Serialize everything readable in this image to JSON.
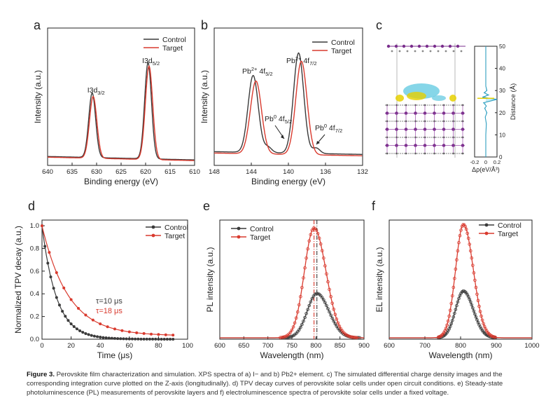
{
  "caption": {
    "label": "Figure 3.",
    "text": "Perovskite film characterization and simulation. XPS spectra of a) I− and b) Pb2+ element. c) The simulated differential charge density images and the corresponding integration curve plotted on the Z-axis (longitudinally). d) TPV decay curves of perovskite solar cells under open circuit conditions. e) Steady-state photoluminescence (PL) measurements of perovskite layers and f) electroluminescence spectra of perovskite solar cells under a fixed voltage."
  },
  "colors": {
    "control": "#3a3a3a",
    "target": "#d93a2e",
    "cyan": "#5ec8e0",
    "yellow": "#e6d000",
    "purple": "#7a2e8c"
  },
  "chart_data": [
    {
      "id": "a",
      "type": "line",
      "panel_label": "a",
      "xlabel": "Binding energy (eV)",
      "ylabel": "Intensity (a.u.)",
      "xlim": [
        640,
        610
      ],
      "xticks": [
        640,
        635,
        630,
        625,
        620,
        615,
        610
      ],
      "legend": [
        "Control",
        "Target"
      ],
      "annotations": [
        {
          "text": "I3d3/2",
          "x": 630.8
        },
        {
          "text": "I3d5/2",
          "x": 619.3
        }
      ],
      "series": [
        {
          "name": "Control",
          "peaks": [
            {
              "center": 630.9,
              "height": 0.47,
              "width": 0.7
            },
            {
              "center": 619.5,
              "height": 0.7,
              "width": 0.7
            }
          ],
          "baseline": 0.04
        },
        {
          "name": "Target",
          "peaks": [
            {
              "center": 630.7,
              "height": 0.45,
              "width": 0.75
            },
            {
              "center": 619.3,
              "height": 0.68,
              "width": 0.75
            }
          ],
          "baseline": 0.035
        }
      ]
    },
    {
      "id": "b",
      "type": "line",
      "panel_label": "b",
      "xlabel": "Binding energy (eV)",
      "ylabel": "Intensity (a.u.)",
      "xlim": [
        148,
        132
      ],
      "xticks": [
        148,
        144,
        140,
        136,
        132
      ],
      "legend": [
        "Control",
        "Target"
      ],
      "annotations": [
        {
          "text": "Pb2+ 4f5/2",
          "x": 143.5
        },
        {
          "text": "Pb2+ 4f7/2",
          "x": 138.6
        },
        {
          "text": "Pb0 4f5/2",
          "x": 141.9
        },
        {
          "text": "Pb0 4f7/2",
          "x": 136.8
        }
      ],
      "series": [
        {
          "name": "Control",
          "peaks": [
            {
              "center": 143.8,
              "height": 0.56,
              "width": 0.55
            },
            {
              "center": 138.9,
              "height": 0.73,
              "width": 0.55
            },
            {
              "center": 142.2,
              "height": 0.04,
              "width": 0.4
            },
            {
              "center": 137.0,
              "height": 0.04,
              "width": 0.4
            }
          ],
          "baseline": 0.1
        },
        {
          "name": "Target",
          "peaks": [
            {
              "center": 143.5,
              "height": 0.53,
              "width": 0.6
            },
            {
              "center": 138.6,
              "height": 0.68,
              "width": 0.6
            }
          ],
          "baseline": 0.09
        }
      ]
    },
    {
      "id": "c_profile",
      "type": "line",
      "panel_label": "c",
      "xlabel": "Δρ(eV/Å³)",
      "ylabel": "Distance (Å)",
      "xlim": [
        -0.2,
        0.2
      ],
      "xticks": [
        -0.2,
        0.0,
        0.2
      ],
      "ylim": [
        0,
        50
      ],
      "yticks": [
        0,
        10,
        20,
        30,
        40,
        50
      ],
      "series": [
        {
          "name": "Δρ",
          "points": [
            [
              0,
              0
            ],
            [
              0,
              10
            ],
            [
              0.01,
              15
            ],
            [
              -0.01,
              18
            ],
            [
              0.02,
              20
            ],
            [
              -0.02,
              22
            ],
            [
              0.01,
              23
            ],
            [
              -0.04,
              24.5
            ],
            [
              0.2,
              26
            ],
            [
              -0.06,
              27
            ],
            [
              0.05,
              28
            ],
            [
              -0.03,
              29
            ],
            [
              0.02,
              30
            ],
            [
              0,
              32
            ],
            [
              0,
              50
            ]
          ]
        }
      ]
    },
    {
      "id": "d",
      "type": "line",
      "panel_label": "d",
      "xlabel": "Time (μs)",
      "ylabel": "Normalized TPV decay (a.u.)",
      "xlim": [
        0,
        100
      ],
      "xticks": [
        0,
        20,
        40,
        60,
        80,
        100
      ],
      "ylim": [
        0,
        1.05
      ],
      "yticks": [
        0.0,
        0.2,
        0.4,
        0.6,
        0.8,
        1.0
      ],
      "legend": [
        "Control",
        "Target"
      ],
      "annotations": [
        {
          "text": "τ=10 μs",
          "color": "control"
        },
        {
          "text": "τ=18 μs",
          "color": "target"
        }
      ],
      "series": [
        {
          "name": "Control",
          "tau": 10,
          "offset": 0.0
        },
        {
          "name": "Target",
          "tau": 18,
          "offset": 0.03
        }
      ]
    },
    {
      "id": "e",
      "type": "line",
      "panel_label": "e",
      "xlabel": "Wavelength (nm)",
      "ylabel": "PL intensity (a.u.)",
      "xlim": [
        600,
        900
      ],
      "xticks": [
        600,
        650,
        700,
        750,
        800,
        850,
        900
      ],
      "legend": [
        "Control",
        "Target"
      ],
      "vlines": [
        796,
        802
      ],
      "series": [
        {
          "name": "Control",
          "center": 802,
          "height": 0.38,
          "width": 20
        },
        {
          "name": "Target",
          "center": 796,
          "height": 0.94,
          "width": 20
        }
      ]
    },
    {
      "id": "f",
      "type": "line",
      "panel_label": "f",
      "xlabel": "Wavelength (nm)",
      "ylabel": "EL intensity (a.u.)",
      "xlim": [
        600,
        1000
      ],
      "xticks": [
        600,
        700,
        800,
        900,
        1000
      ],
      "legend": [
        "Control",
        "Target"
      ],
      "series": [
        {
          "name": "Control",
          "center": 808,
          "height": 0.4,
          "width": 22
        },
        {
          "name": "Target",
          "center": 808,
          "height": 0.97,
          "width": 22
        }
      ]
    }
  ]
}
